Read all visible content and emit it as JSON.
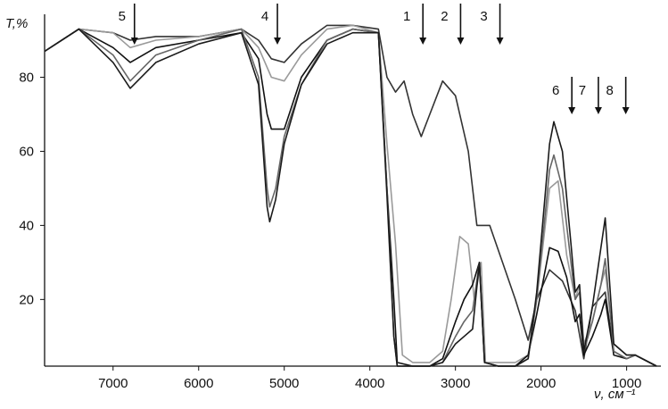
{
  "chart_data": {
    "type": "line",
    "xlabel": "ν, см⁻¹",
    "ylabel": "T,%",
    "xlim": [
      7800,
      600
    ],
    "ylim": [
      2,
      97
    ],
    "x_reversed": true,
    "grid": false,
    "legend": "none",
    "xticks": [
      7000,
      6000,
      5000,
      4000,
      3000,
      2000,
      1000
    ],
    "yticks": [
      20,
      40,
      60,
      80
    ],
    "markers": [
      {
        "label": "5",
        "x": 6750
      },
      {
        "label": "4",
        "x": 5080
      },
      {
        "label": "1",
        "x": 3380
      },
      {
        "label": "2",
        "x": 2940
      },
      {
        "label": "3",
        "x": 2480
      },
      {
        "label": "6",
        "x": 1640
      },
      {
        "label": "7",
        "x": 1330
      },
      {
        "label": "8",
        "x": 1010
      }
    ],
    "series": [
      {
        "color": "#333333",
        "points": [
          [
            7800,
            87
          ],
          [
            7400,
            93
          ],
          [
            7000,
            92
          ],
          [
            6800,
            90
          ],
          [
            6500,
            91
          ],
          [
            6000,
            91
          ],
          [
            5500,
            93
          ],
          [
            5300,
            90
          ],
          [
            5150,
            85
          ],
          [
            5000,
            84
          ],
          [
            4800,
            89
          ],
          [
            4500,
            94
          ],
          [
            4200,
            94
          ],
          [
            3900,
            93
          ],
          [
            3800,
            80
          ],
          [
            3700,
            76
          ],
          [
            3600,
            79
          ],
          [
            3500,
            70
          ],
          [
            3400,
            64
          ],
          [
            3300,
            70
          ],
          [
            3150,
            79
          ],
          [
            3000,
            75
          ],
          [
            2850,
            60
          ],
          [
            2750,
            40
          ],
          [
            2600,
            40
          ],
          [
            2450,
            30
          ],
          [
            2300,
            20
          ],
          [
            2150,
            9
          ],
          [
            2050,
            20
          ],
          [
            1900,
            28
          ],
          [
            1750,
            25
          ],
          [
            1600,
            17
          ],
          [
            1500,
            4
          ],
          [
            1400,
            18
          ],
          [
            1250,
            22
          ],
          [
            1150,
            6
          ],
          [
            1000,
            4
          ],
          [
            900,
            5
          ],
          [
            650,
            2
          ]
        ]
      },
      {
        "color": "#9a9a9a",
        "points": [
          [
            7800,
            87
          ],
          [
            7400,
            93
          ],
          [
            7000,
            92
          ],
          [
            6800,
            88
          ],
          [
            6500,
            90
          ],
          [
            6000,
            91
          ],
          [
            5500,
            93
          ],
          [
            5300,
            88
          ],
          [
            5150,
            80
          ],
          [
            5000,
            79
          ],
          [
            4800,
            86
          ],
          [
            4500,
            93
          ],
          [
            4200,
            94
          ],
          [
            3900,
            92
          ],
          [
            3800,
            62
          ],
          [
            3700,
            35
          ],
          [
            3620,
            5
          ],
          [
            3500,
            3
          ],
          [
            3300,
            3
          ],
          [
            3150,
            6
          ],
          [
            3050,
            20
          ],
          [
            2950,
            37
          ],
          [
            2850,
            35
          ],
          [
            2780,
            20
          ],
          [
            2700,
            30
          ],
          [
            2650,
            3
          ],
          [
            2500,
            3
          ],
          [
            2300,
            3
          ],
          [
            2150,
            5
          ],
          [
            2050,
            20
          ],
          [
            1900,
            50
          ],
          [
            1800,
            52
          ],
          [
            1700,
            32
          ],
          [
            1600,
            20
          ],
          [
            1550,
            24
          ],
          [
            1500,
            8
          ],
          [
            1400,
            14
          ],
          [
            1300,
            24
          ],
          [
            1250,
            28
          ],
          [
            1150,
            8
          ],
          [
            1000,
            5
          ],
          [
            900,
            5
          ],
          [
            650,
            2
          ]
        ]
      },
      {
        "color": "#111111",
        "points": [
          [
            7800,
            87
          ],
          [
            7400,
            93
          ],
          [
            7000,
            88
          ],
          [
            6800,
            84
          ],
          [
            6500,
            88
          ],
          [
            6000,
            90
          ],
          [
            5500,
            92
          ],
          [
            5300,
            85
          ],
          [
            5200,
            70
          ],
          [
            5150,
            66
          ],
          [
            5000,
            66
          ],
          [
            4800,
            80
          ],
          [
            4500,
            90
          ],
          [
            4200,
            93
          ],
          [
            3900,
            92
          ],
          [
            3800,
            50
          ],
          [
            3720,
            20
          ],
          [
            3680,
            3
          ],
          [
            3500,
            2
          ],
          [
            3300,
            2
          ],
          [
            3150,
            4
          ],
          [
            3000,
            14
          ],
          [
            2900,
            20
          ],
          [
            2800,
            24
          ],
          [
            2720,
            30
          ],
          [
            2660,
            3
          ],
          [
            2500,
            2
          ],
          [
            2300,
            2
          ],
          [
            2150,
            5
          ],
          [
            2050,
            16
          ],
          [
            1900,
            34
          ],
          [
            1800,
            33
          ],
          [
            1700,
            26
          ],
          [
            1600,
            14
          ],
          [
            1550,
            16
          ],
          [
            1500,
            5
          ],
          [
            1400,
            10
          ],
          [
            1300,
            16
          ],
          [
            1250,
            20
          ],
          [
            1150,
            5
          ],
          [
            1000,
            4
          ],
          [
            900,
            5
          ],
          [
            650,
            2
          ]
        ]
      },
      {
        "color": "#666666",
        "points": [
          [
            7800,
            87
          ],
          [
            7400,
            93
          ],
          [
            7000,
            86
          ],
          [
            6800,
            79
          ],
          [
            6500,
            86
          ],
          [
            6000,
            90
          ],
          [
            5500,
            93
          ],
          [
            5300,
            80
          ],
          [
            5200,
            50
          ],
          [
            5170,
            45
          ],
          [
            5100,
            50
          ],
          [
            5000,
            64
          ],
          [
            4800,
            78
          ],
          [
            4500,
            90
          ],
          [
            4200,
            93
          ],
          [
            3900,
            92
          ],
          [
            3800,
            50
          ],
          [
            3720,
            10
          ],
          [
            3680,
            2
          ],
          [
            3500,
            2
          ],
          [
            3300,
            2
          ],
          [
            3150,
            3
          ],
          [
            3000,
            10
          ],
          [
            2900,
            14
          ],
          [
            2800,
            17
          ],
          [
            2720,
            30
          ],
          [
            2660,
            3
          ],
          [
            2500,
            2
          ],
          [
            2300,
            2
          ],
          [
            2150,
            4
          ],
          [
            2050,
            20
          ],
          [
            1900,
            55
          ],
          [
            1850,
            59
          ],
          [
            1750,
            50
          ],
          [
            1650,
            30
          ],
          [
            1600,
            20
          ],
          [
            1550,
            22
          ],
          [
            1500,
            6
          ],
          [
            1400,
            14
          ],
          [
            1300,
            24
          ],
          [
            1250,
            31
          ],
          [
            1150,
            6
          ],
          [
            1000,
            4
          ],
          [
            900,
            5
          ],
          [
            650,
            2
          ]
        ]
      },
      {
        "color": "#1a1a1a",
        "points": [
          [
            7800,
            87
          ],
          [
            7400,
            93
          ],
          [
            7000,
            84
          ],
          [
            6800,
            77
          ],
          [
            6500,
            84
          ],
          [
            6000,
            89
          ],
          [
            5500,
            92
          ],
          [
            5300,
            78
          ],
          [
            5200,
            45
          ],
          [
            5170,
            41
          ],
          [
            5100,
            47
          ],
          [
            5000,
            62
          ],
          [
            4800,
            78
          ],
          [
            4500,
            89
          ],
          [
            4200,
            92
          ],
          [
            3900,
            92
          ],
          [
            3800,
            48
          ],
          [
            3720,
            10
          ],
          [
            3680,
            2
          ],
          [
            3500,
            2
          ],
          [
            3300,
            2
          ],
          [
            3150,
            3
          ],
          [
            3000,
            8
          ],
          [
            2900,
            10
          ],
          [
            2800,
            12
          ],
          [
            2720,
            30
          ],
          [
            2660,
            3
          ],
          [
            2500,
            2
          ],
          [
            2300,
            2
          ],
          [
            2150,
            4
          ],
          [
            2050,
            22
          ],
          [
            1900,
            62
          ],
          [
            1850,
            68
          ],
          [
            1750,
            60
          ],
          [
            1650,
            35
          ],
          [
            1600,
            22
          ],
          [
            1550,
            24
          ],
          [
            1500,
            6
          ],
          [
            1400,
            18
          ],
          [
            1300,
            34
          ],
          [
            1250,
            42
          ],
          [
            1150,
            8
          ],
          [
            1000,
            5
          ],
          [
            900,
            5
          ],
          [
            650,
            2
          ]
        ]
      }
    ]
  }
}
